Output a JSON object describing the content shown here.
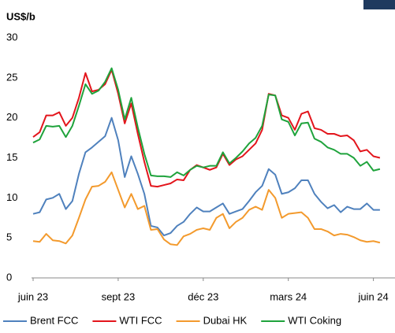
{
  "chart_data": {
    "type": "line",
    "y_label": "US$/b",
    "categories": [
      "juin 23",
      null,
      null,
      null,
      null,
      null,
      null,
      null,
      null,
      null,
      null,
      null,
      null,
      "sept 23",
      null,
      null,
      null,
      null,
      null,
      null,
      null,
      null,
      null,
      null,
      null,
      null,
      "déc 23",
      null,
      null,
      null,
      null,
      null,
      null,
      null,
      null,
      null,
      null,
      null,
      null,
      "mars 24",
      null,
      null,
      null,
      null,
      null,
      null,
      null,
      null,
      null,
      null,
      null,
      null,
      "juin 24",
      null
    ],
    "series": [
      {
        "name": "Brent FCC",
        "color": "#4f81bd",
        "values": [
          8,
          8.2,
          9.8,
          10,
          10.5,
          8.6,
          9.6,
          13,
          15.7,
          16.3,
          17,
          17.7,
          20,
          17.2,
          12.6,
          15.2,
          13,
          10.5,
          6.5,
          6.3,
          5.3,
          5.6,
          6.5,
          7,
          8,
          8.8,
          8.3,
          8.3,
          8.8,
          9.3,
          8,
          8.3,
          8.6,
          9.6,
          10.7,
          11.5,
          13.6,
          12.9,
          10.5,
          10.7,
          11.2,
          12.2,
          12.2,
          10.5,
          9.5,
          8.7,
          9.1,
          8.2,
          8.9,
          8.6,
          8.6,
          9.3,
          8.5,
          8.5
        ]
      },
      {
        "name": "WTI FCC",
        "color": "#e3151c",
        "values": [
          17.6,
          18.2,
          20.3,
          20.3,
          20.7,
          19,
          20,
          22.5,
          25.6,
          23.3,
          23.5,
          24.2,
          26,
          23,
          19.3,
          21.8,
          18,
          14.5,
          11.5,
          11.4,
          11.6,
          11.8,
          12.3,
          12.2,
          13.5,
          14.1,
          13.8,
          13.5,
          13.8,
          15.5,
          14.1,
          14.8,
          15.2,
          16,
          16.8,
          18.5,
          23,
          22.8,
          20.3,
          20,
          18.5,
          20.5,
          20.8,
          18.7,
          18.5,
          18,
          18,
          17.7,
          17.8,
          17.2,
          15.8,
          16,
          15.2,
          15
        ]
      },
      {
        "name": "Dubai HK",
        "color": "#f39a2d",
        "values": [
          4.6,
          4.5,
          5.5,
          4.7,
          4.6,
          4.3,
          5.3,
          7.5,
          9.8,
          11.4,
          11.5,
          12,
          13.2,
          11,
          8.8,
          10.5,
          8.6,
          9,
          6,
          6.1,
          4.8,
          4.2,
          4.1,
          5.2,
          5.5,
          6,
          6.2,
          6,
          7.5,
          8,
          6.2,
          7,
          7.5,
          8.5,
          8.9,
          8.5,
          11,
          10,
          7.5,
          8,
          8.1,
          8.2,
          7.5,
          6.1,
          6.1,
          5.8,
          5.3,
          5.5,
          5.4,
          5.1,
          4.7,
          4.5,
          4.6,
          4.4
        ]
      },
      {
        "name": "WTI Coking",
        "color": "#1fa33c",
        "values": [
          16.9,
          17.3,
          19,
          18.9,
          19,
          17.6,
          19,
          21.5,
          24.2,
          23,
          23.4,
          24.5,
          26.2,
          23.5,
          19.8,
          22.5,
          18.8,
          15.5,
          12.8,
          12.7,
          12.7,
          12.6,
          13.2,
          12.8,
          13.5,
          14,
          13.8,
          14,
          14,
          15.7,
          14.3,
          15,
          15.8,
          16.8,
          17.5,
          19,
          22.9,
          22.8,
          19.8,
          19.5,
          17.8,
          19.3,
          19.4,
          17.4,
          17,
          16.3,
          16,
          15.5,
          15.5,
          15,
          14,
          14.5,
          13.4,
          13.6
        ]
      }
    ],
    "ylim": [
      0,
      30
    ],
    "yticks": [
      0,
      5,
      10,
      15,
      20,
      25,
      30
    ],
    "grid": false,
    "legend": "bottom"
  }
}
